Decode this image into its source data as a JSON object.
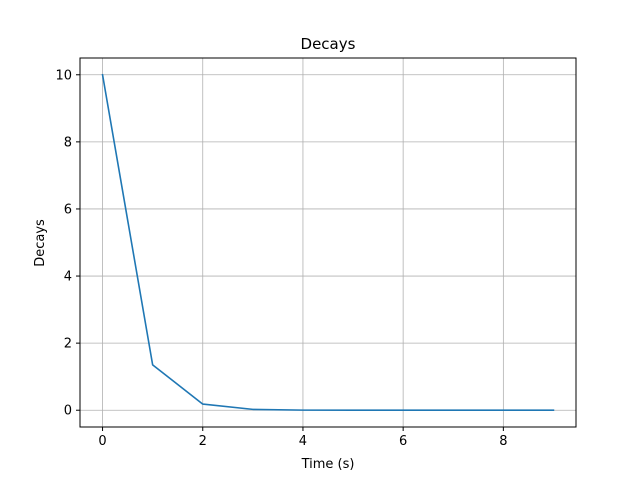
{
  "chart_data": {
    "type": "line",
    "title": "Decays",
    "xlabel": "Time (s)",
    "ylabel": "Decays",
    "xlim": [
      -0.45,
      9.45
    ],
    "ylim": [
      -0.5,
      10.5
    ],
    "x_ticks": [
      0,
      2,
      4,
      6,
      8
    ],
    "y_ticks": [
      0,
      2,
      4,
      6,
      8,
      10
    ],
    "grid": true,
    "legend": "none",
    "series": [
      {
        "color": "#1f77b4",
        "x": [
          0,
          1,
          2,
          3,
          4,
          5,
          6,
          7,
          8,
          9
        ],
        "values": [
          10,
          1.353,
          0.183,
          0.025,
          0.003,
          0.0005,
          0.0001,
          0.0,
          0.0,
          0.0
        ]
      }
    ]
  },
  "colors": {
    "axes": "#000000",
    "grid": "#b0b0b0",
    "background": "#ffffff"
  }
}
